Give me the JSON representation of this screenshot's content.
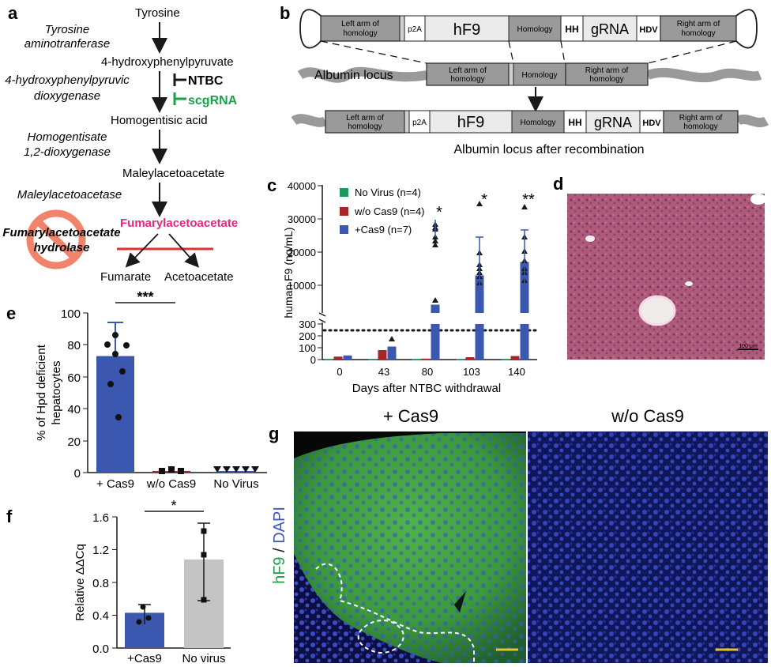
{
  "panel_letters": {
    "a": "a",
    "b": "b",
    "c": "c",
    "d": "d",
    "e": "e",
    "f": "f",
    "g": "g"
  },
  "pathway": {
    "metabolites": [
      "Tyrosine",
      "4-hydroxyphenylpyruvate",
      "Homogentisic acid",
      "Maleylacetoacetate",
      "Fumarylacetoacetate"
    ],
    "enzymes": [
      "Tyrosine\naminotranferase",
      "4-hydroxyphenylpyruvic\ndioxygenase",
      "Homogentisate\n1,2-dioxygenase",
      "Maleylacetoacetase",
      "Fumarylacetoacetate\nhydrolase"
    ],
    "enzyme_lines": {
      "e1a": "Tyrosine",
      "e1b": "aminotranferase",
      "e2a": "4-hydroxyphenylpyruvic",
      "e2b": "dioxygenase",
      "e3a": "Homogentisate",
      "e3b": "1,2-dioxygenase",
      "e4a": "Maleylacetoacetase",
      "e5a": "Fumarylacetoacetate",
      "e5b": "hydrolase"
    },
    "inhibitors": {
      "ntbc": "NTBC",
      "scgrna": "scgRNA"
    },
    "products": {
      "fumarate": "Fumarate",
      "acetoacetate": "Acetoacetate"
    },
    "colors": {
      "fumaryl": "#e6277d",
      "scgrna": "#1aa24a",
      "block": "#e03030",
      "ban": "#f0836a"
    }
  },
  "construct": {
    "donor": [
      "Left arm of",
      "homology",
      "p2A",
      "hF9",
      "Homology",
      "HH",
      "gRNA",
      "HDV",
      "Right arm of",
      "homology"
    ],
    "locus_label": "Albumin locus",
    "locus_boxes": [
      "Left arm of",
      "homology",
      "Homology",
      "Right arm of",
      "homology"
    ],
    "recombined_label": "Albumin locus after recombination"
  },
  "chart_c": {
    "ylabel": "human F9 (ng/mL)",
    "xlabel": "Days after NTBC withdrawal",
    "yticks_upper": [
      "40000",
      "30000",
      "20000",
      "10000"
    ],
    "yticks_lower": [
      "300",
      "200",
      "100",
      "0"
    ],
    "categories": [
      "0",
      "43",
      "80",
      "103",
      "140"
    ],
    "legend": [
      "No Virus (n=4)",
      "w/o Cas9  (n=4)",
      "+Cas9  (n=7)"
    ],
    "stars": [
      "*",
      "*",
      "**"
    ],
    "colors": {
      "novirus": "#1b9a5a",
      "wocas9": "#a6262a",
      "cas9": "#3b57b0"
    }
  },
  "chart_data": [
    {
      "type": "bar",
      "categories": [
        "0",
        "43",
        "80",
        "103",
        "140"
      ],
      "series": [
        {
          "name": "No Virus (n=4)",
          "values": [
            5,
            5,
            5,
            5,
            5
          ]
        },
        {
          "name": "w/o Cas9  (n=4)",
          "values": [
            25,
            80,
            8,
            20,
            30
          ]
        },
        {
          "name": "+Cas9  (n=7)",
          "values": [
            35,
            110,
            3000,
            13000,
            17000
          ]
        }
      ],
      "threshold": 250,
      "ylabel": "human F9 (ng/mL)",
      "xlabel": "Days after NTBC withdrawal"
    },
    {
      "type": "bar",
      "categories": [
        "+ Cas9",
        "w/o Cas9",
        "No Virus"
      ],
      "values": [
        73,
        1,
        0
      ],
      "ylim": [
        0,
        100
      ],
      "ylabel": "% of Hpd deficient hepatocytes"
    },
    {
      "type": "bar",
      "categories": [
        "+Cas9",
        "No virus"
      ],
      "values": [
        0.43,
        1.08
      ],
      "ylim": [
        0,
        1.6
      ],
      "ylabel": "Relative ΔΔCq"
    }
  ],
  "chart_e": {
    "ylabel1": "% of Hpd deficient",
    "ylabel2": "hepatocytes",
    "yticks": [
      "100",
      "80",
      "60",
      "40",
      "20",
      "0"
    ],
    "categories": [
      "+ Cas9",
      "w/o Cas9",
      "No Virus"
    ],
    "sig": "***"
  },
  "chart_f": {
    "ylabel": "Relative ΔΔCq",
    "yticks": [
      "1.6",
      "1.2",
      "0.8",
      "0.4",
      "0.0"
    ],
    "categories": [
      "+Cas9",
      "No virus"
    ],
    "sig": "*"
  },
  "panel_g": {
    "left_title": "+ Cas9",
    "right_title": "w/o Cas9",
    "axis_hf9": "hF9",
    "axis_sep": " / ",
    "axis_dapi": "DAPI"
  },
  "panel_d": {
    "scalebar": "100 μm"
  }
}
